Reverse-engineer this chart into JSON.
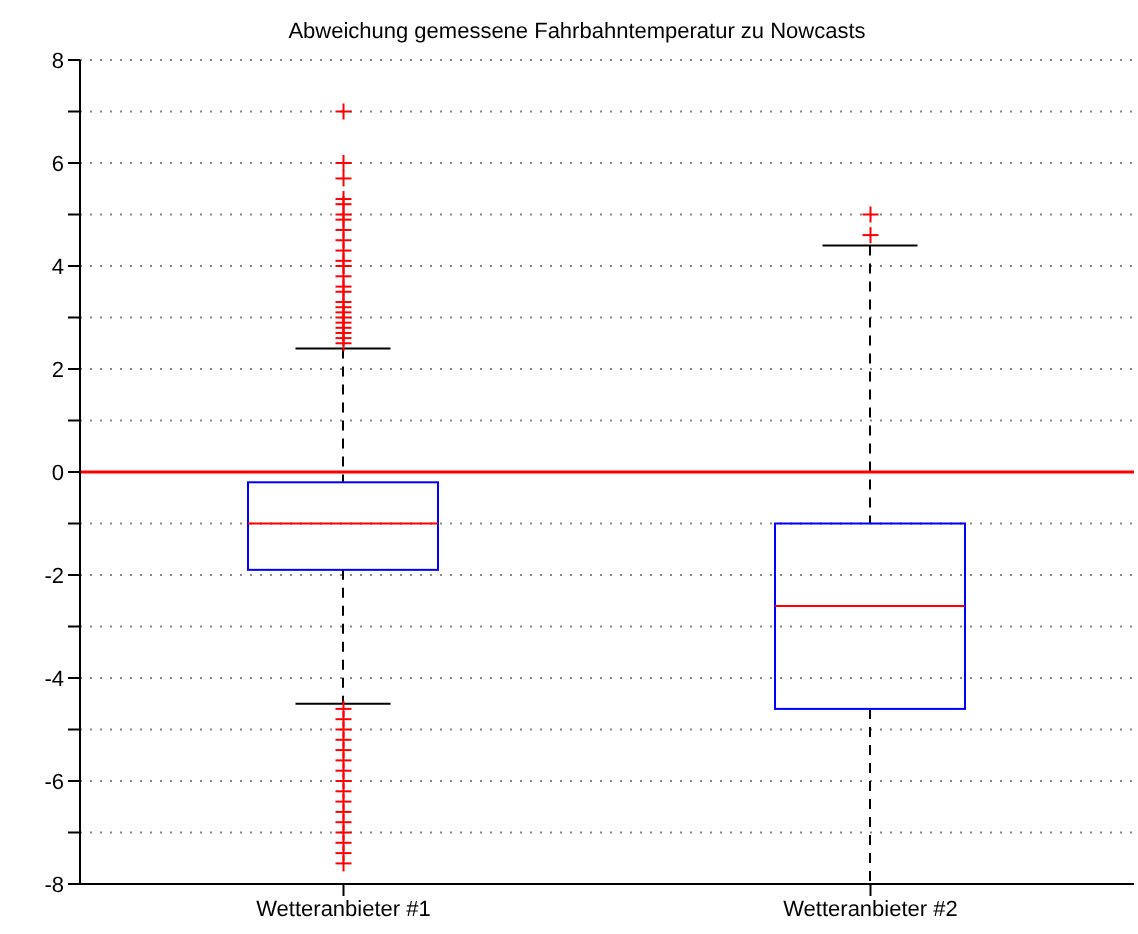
{
  "chart_data": {
    "type": "box",
    "title": "Abweichung gemessene Fahrbahntemperatur zu Nowcasts",
    "categories": [
      "Wetteranbieter #1",
      "Wetteranbieter #2"
    ],
    "color": "#0000ff",
    "marker": "cross",
    "boxes": [
      {
        "low": -4.5,
        "q1": -1.9,
        "median": -1.0,
        "q3": -0.2,
        "high": 2.4,
        "outliers": [
          7.0,
          6.0,
          5.7,
          5.3,
          5.2,
          5.0,
          4.9,
          4.7,
          4.5,
          4.3,
          4.1,
          4.0,
          3.8,
          3.6,
          3.5,
          3.3,
          3.2,
          3.1,
          3.0,
          2.9,
          2.8,
          2.7,
          2.6,
          2.5,
          -4.6,
          -4.8,
          -5.0,
          -5.2,
          -5.4,
          -5.6,
          -5.8,
          -6.0,
          -6.2,
          -6.4,
          -6.6,
          -6.8,
          -7.0,
          -7.2,
          -7.4,
          -7.6
        ]
      },
      {
        "low": -8.0,
        "q1": -4.6,
        "median": -2.6,
        "q3": -1.0,
        "high": 4.4,
        "outliers": [
          5.0,
          4.6
        ]
      }
    ],
    "ylim": [
      -8,
      8
    ],
    "yticks": [
      -8,
      {
        "value": -7,
        "label": null
      },
      -6,
      {
        "value": -5,
        "label": null
      },
      -4,
      {
        "value": -3,
        "label": null
      },
      -2,
      {
        "value": -1,
        "label": null
      },
      0,
      {
        "value": 1,
        "label": null
      },
      2,
      {
        "value": 3,
        "label": null
      },
      4,
      {
        "value": 5,
        "label": null
      },
      6,
      {
        "value": 7,
        "label": null
      },
      8
    ],
    "ref_lines": [
      {
        "axis": "y",
        "value": 0,
        "color": "#ff0000"
      }
    ],
    "grid": "y"
  }
}
